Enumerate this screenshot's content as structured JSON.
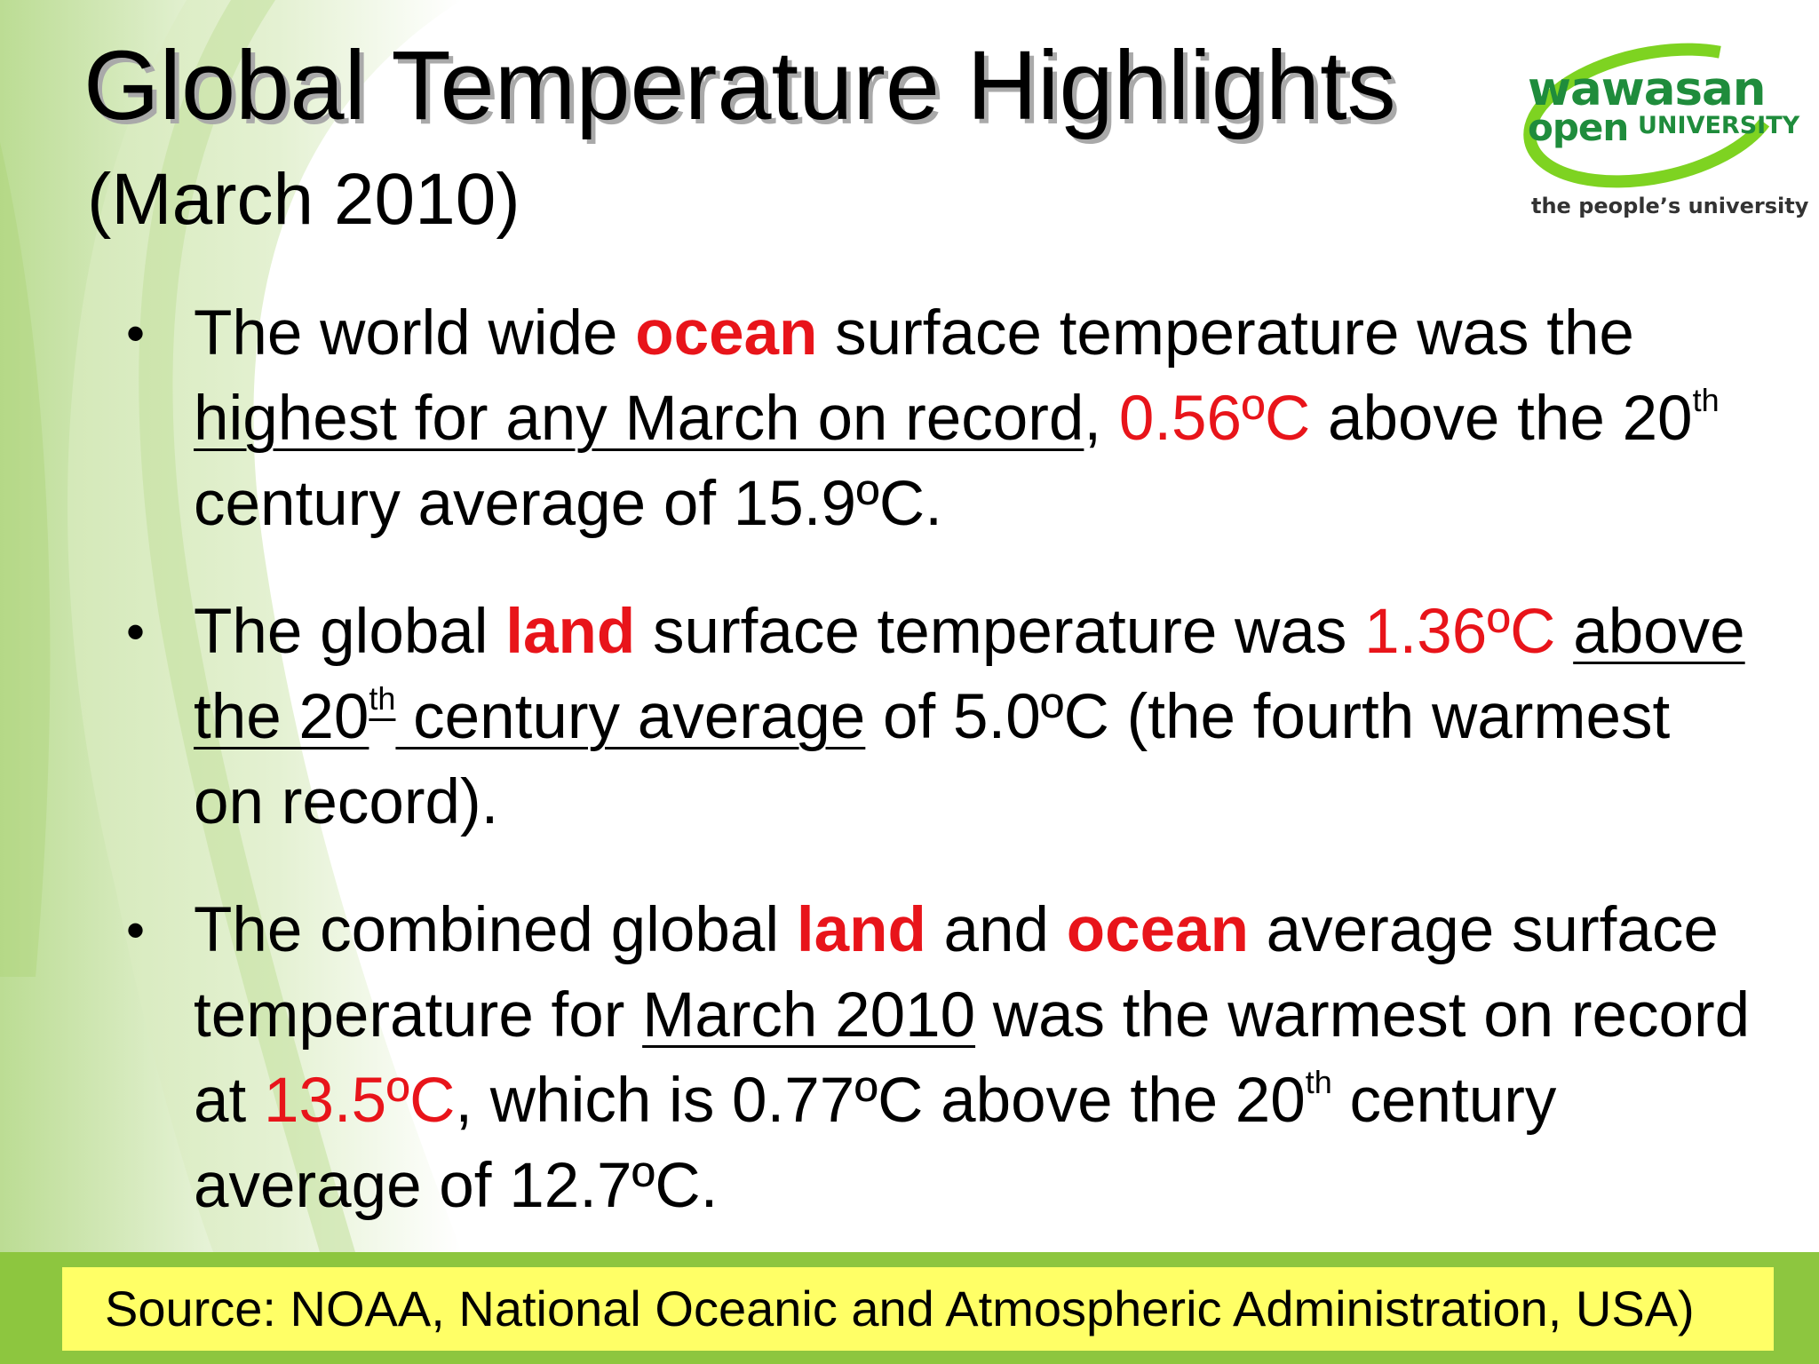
{
  "slide": {
    "title": "Global Temperature Highlights",
    "subtitle": "(March 2010)"
  },
  "logo": {
    "line1": "wawasan",
    "line2": "open",
    "line3": "UNIVERSITY",
    "tagline": "the people’s university",
    "color": "#1f8c3c",
    "ring_color": "#7ed321"
  },
  "bullets": {
    "ocean": {
      "t1": "The world wide ",
      "hl1": "ocean",
      "t2": " surface temperature was the ",
      "ul1": "highest for any March on record",
      "t3": ", ",
      "val1": "0.56ºC",
      "t4": " above the 20",
      "sup1": "th",
      "t5": " century average of 15.9ºC."
    },
    "land": {
      "t1": "The global ",
      "hl1": "land",
      "t2": " surface temperature was ",
      "val1": "1.36ºC",
      "t3": " ",
      "ul1": "above the 20",
      "sup1": "th",
      "ul2": " century average",
      "t4": " of 5.0ºC (the fourth warmest on record)."
    },
    "combined": {
      "t1": "The combined global ",
      "hl1": "land",
      "t2": " and ",
      "hl2": "ocean",
      "t3": " average surface temperature for ",
      "ul1": "March 2010",
      "t4": " was the warmest on record at ",
      "val1": "13.5ºC",
      "t5": ", which is 0.77ºC above the 20",
      "sup1": "th",
      "t6": " century average of 12.7ºC."
    }
  },
  "footer": {
    "source": "Source: NOAA, National Oceanic and Atmospheric Administration, USA)"
  },
  "colors": {
    "highlight_red": "#e8141a",
    "footer_green": "#8dc63f",
    "source_yellow": "#ffff66"
  }
}
